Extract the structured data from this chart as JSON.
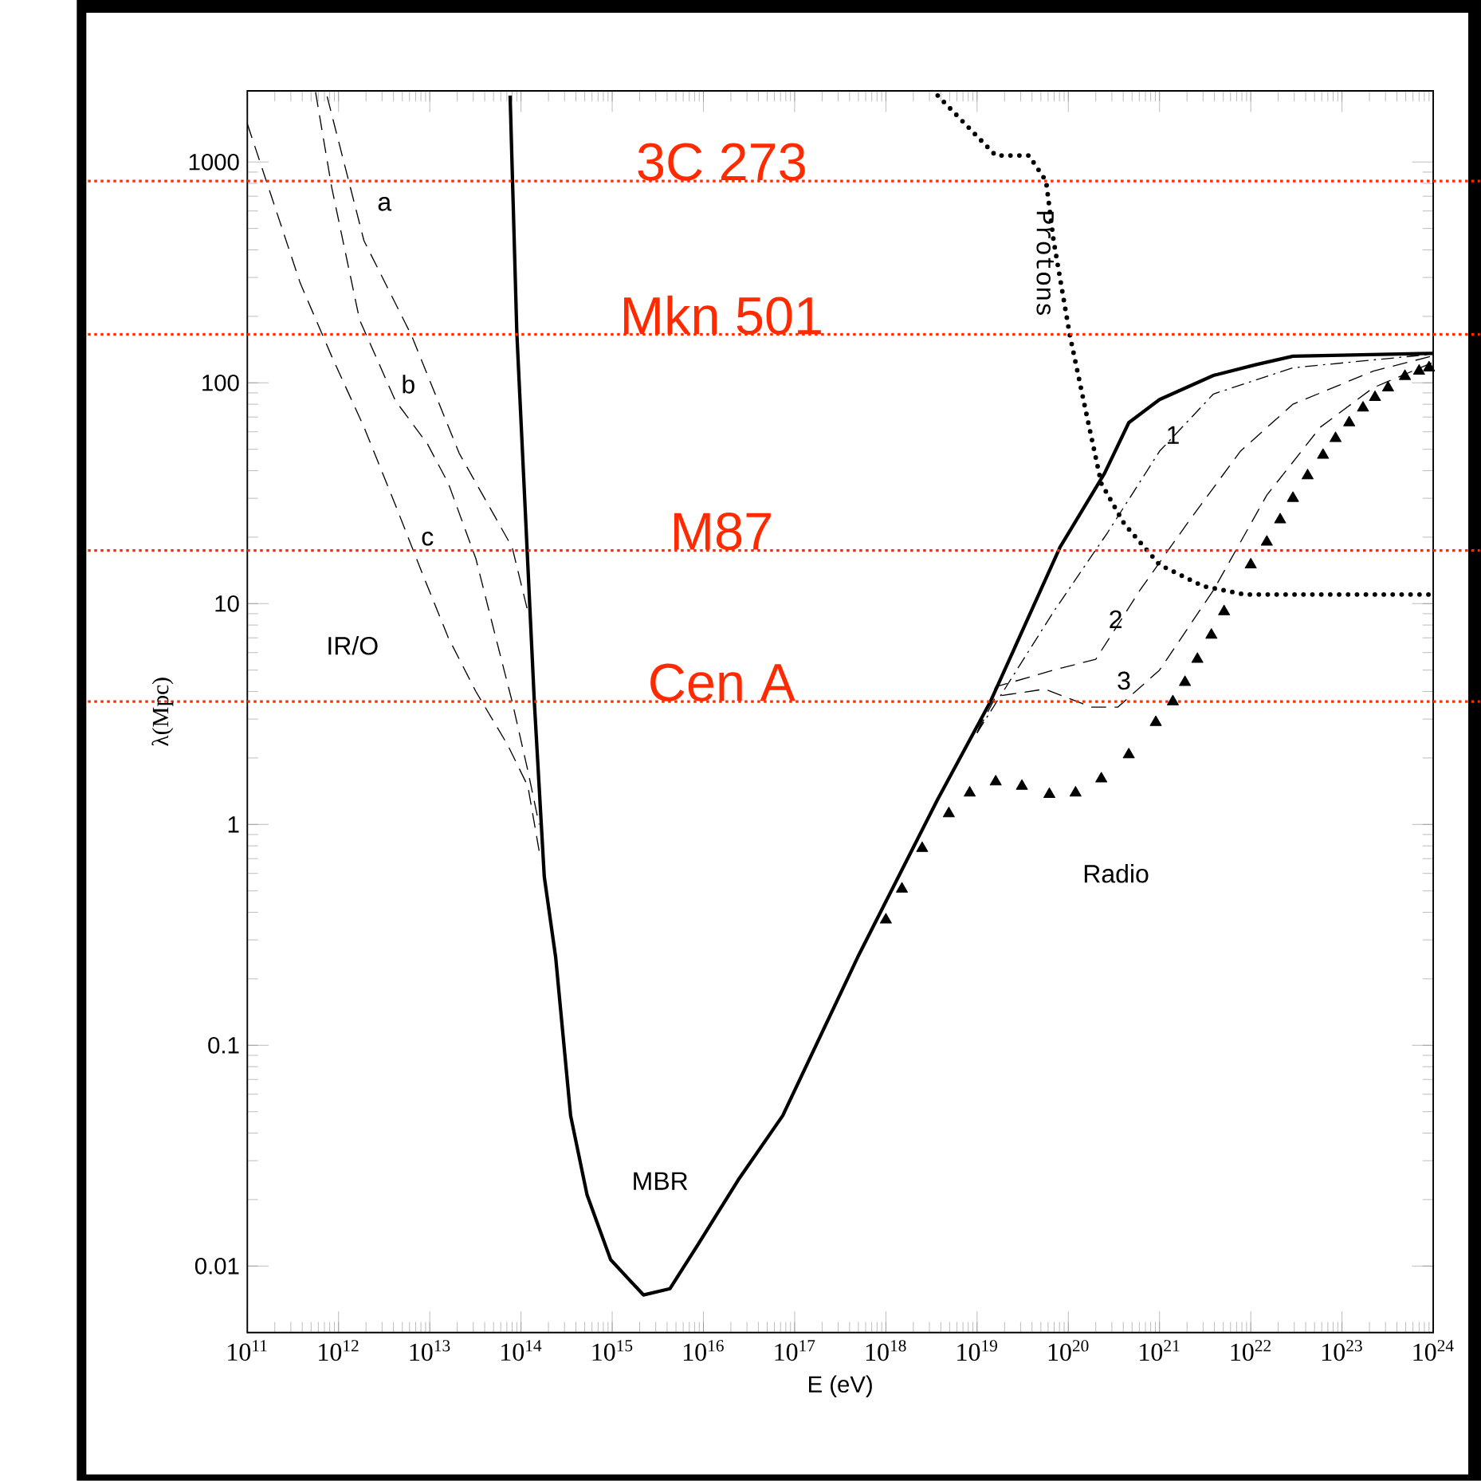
{
  "chart_data": {
    "type": "line",
    "xlabel": "E (eV)",
    "ylabel": "λ(Mpc)",
    "log": "xy",
    "xlim": [
      100000000000.0,
      1e+24
    ],
    "ylim": [
      0.005,
      2100
    ],
    "xticks": [
      {
        "value": 100000000000.0,
        "label": "10$^{11}$"
      },
      {
        "value": 1000000000000.0,
        "label": "10$^{12}$"
      },
      {
        "value": 10000000000000.0,
        "label": "10$^{13}$"
      },
      {
        "value": 100000000000000.0,
        "label": "10$^{14}$"
      },
      {
        "value": 1000000000000000.0,
        "label": "10$^{15}$"
      },
      {
        "value": 1e+16,
        "label": "10$^{16}$"
      },
      {
        "value": 1e+17,
        "label": "10$^{17}$"
      },
      {
        "value": 1e+18,
        "label": "10$^{18}$"
      },
      {
        "value": 1e+19,
        "label": "10$^{19}$"
      },
      {
        "value": 1e+20,
        "label": "10$^{20}$"
      },
      {
        "value": 1e+21,
        "label": "10$^{21}$"
      },
      {
        "value": 1e+22,
        "label": "10$^{22}$"
      },
      {
        "value": 1e+23,
        "label": "10$^{23}$"
      },
      {
        "value": 1e+24,
        "label": "10$^{24}$"
      }
    ],
    "yticks": [
      0.01,
      0.1,
      1,
      10,
      100,
      1000
    ],
    "series": [
      {
        "color": "#000000",
        "line_style": "solid",
        "marker": "none",
        "x": [
          76000000000000.0,
          90000000000000.0,
          140000000000000.0,
          180000000000000.0,
          240000000000000.0,
          350000000000000.0,
          530000000000000.0,
          960000000000000.0,
          1450000000000000.0,
          2200000000000000.0,
          4300000000000000.0,
          8800000000000000.0,
          2.4e+16,
          7.4e+16,
          4.9e+17,
          3.7e+18,
          1.4e+19,
          8.1e+19,
          2.5e+20,
          4.6e+20,
          1e+21,
          3.9e+21,
          1.15e+22,
          2.9e+22,
          1e+24
        ],
        "values": [
          2000,
          169,
          3.6,
          0.58,
          0.25,
          0.048,
          0.021,
          0.0107,
          0.0089,
          0.0074,
          0.0079,
          0.0126,
          0.0245,
          0.048,
          0.25,
          1.3,
          3.6,
          18,
          39,
          66,
          84,
          108,
          121,
          132,
          136
        ]
      },
      {
        "name": "Protons",
        "color": "#000000",
        "line_style": "dotted",
        "marker": "none",
        "x": [
          3.7e+18,
          1.6e+19,
          3.7e+19,
          5.7e+19,
          6.9e+19,
          1.04e+20,
          1.55e+20,
          2.3e+20,
          4.1e+20,
          1e+21,
          3e+21,
          8.6e+21,
          1e+24
        ],
        "values": [
          2000,
          1070,
          1070,
          820,
          440,
          164,
          75,
          35,
          23,
          15,
          12,
          11,
          11
        ]
      },
      {
        "color": "#000000",
        "line_style": "dashdot",
        "marker": "none",
        "x": [
          1e+19,
          6.9e+19,
          2.7e+20,
          1e+21,
          3.9e+21,
          2.9e+22,
          8.5e+23
        ],
        "values": [
          2.6,
          9.2,
          21,
          49,
          89,
          117,
          134
        ]
      },
      {
        "color": "#000000",
        "line_style": "dashed",
        "marker": "none",
        "x": [
          1e+19,
          1.6e+19,
          6.9e+19,
          2e+20,
          6.1e+20,
          2e+21,
          7.7e+21,
          2.9e+22,
          2.2e+23,
          9.6e+23
        ],
        "values": [
          2.6,
          4.2,
          5.0,
          5.6,
          11.5,
          23,
          49,
          80,
          113,
          132
        ]
      },
      {
        "color": "#000000",
        "line_style": "dashed",
        "marker": "none",
        "x": [
          1e+19,
          1.6e+19,
          5.5e+19,
          1.8e+20,
          3.5e+20,
          1e+21,
          3.9e+21,
          1.5e+22,
          5.8e+22,
          2.2e+23,
          9.6e+23
        ],
        "values": [
          2.6,
          3.8,
          4.1,
          3.4,
          3.4,
          5.0,
          11.5,
          31,
          63,
          95,
          123
        ]
      },
      {
        "type": "scatter",
        "color": "#000000",
        "marker": "triangle",
        "x": [
          1e+18,
          1.5e+18,
          2.5e+18,
          4.9e+18,
          8.3e+18,
          1.6e+19,
          3.1e+19,
          6.2e+19,
          1.2e+20,
          2.3e+20,
          4.6e+20,
          9.1e+20,
          1.4e+21,
          1.9e+21,
          2.6e+21,
          3.7e+21,
          5.1e+21,
          1e+22,
          1.5e+22,
          2.1e+22,
          2.9e+22,
          4.2e+22,
          6.2e+22,
          8.5e+22,
          1.2e+23,
          1.7e+23,
          2.3e+23,
          3.2e+23,
          4.9e+23,
          7e+23,
          9e+23
        ],
        "values": [
          0.37,
          0.51,
          0.78,
          1.12,
          1.39,
          1.56,
          1.49,
          1.37,
          1.39,
          1.61,
          2.07,
          2.9,
          3.6,
          4.4,
          5.6,
          7.2,
          9.2,
          15,
          19,
          24,
          30,
          38,
          47,
          56,
          66,
          77,
          86,
          95,
          107,
          113,
          117
        ]
      },
      {
        "color": "#000000",
        "line_style": "dashed",
        "marker": "none",
        "x": [
          750000000000.0,
          1900000000000.0,
          6300000000000.0,
          21000000000000.0,
          80000000000000.0,
          119000000000000.0
        ],
        "values": [
          1980,
          440,
          164,
          48,
          18,
          9.2
        ]
      },
      {
        "color": "#000000",
        "line_style": "dashed",
        "marker": "none",
        "x": [
          560000000000.0,
          840000000000.0,
          1700000000000.0,
          4200000000000.0,
          9400000000000.0,
          16000000000000.0,
          32000000000000.0,
          53000000000000.0,
          80000000000000.0,
          119000000000000.0,
          158000000000000.0
        ],
        "values": [
          2070,
          770,
          193,
          83,
          53,
          35,
          16,
          7.0,
          3.6,
          1.75,
          1.0
        ]
      },
      {
        "color": "#000000",
        "line_style": "dashed",
        "marker": "none",
        "x": [
          100000000000.0,
          170000000000.0,
          380000000000.0,
          840000000000.0,
          1900000000000.0,
          4200000000000.0,
          8400000000000.0,
          16000000000000.0,
          32000000000000.0,
          71000000000000.0,
          119000000000000.0,
          158000000000000.0
        ],
        "values": [
          1490,
          770,
          283,
          132,
          63,
          28,
          13.5,
          7.0,
          4.0,
          2.3,
          1.49,
          0.76
        ]
      }
    ],
    "annotations": [
      "a",
      "b",
      "c",
      "IR/O",
      "MBR",
      "Radio",
      "3",
      {
        "text": "1",
        "x": 1.4e+21,
        "y": 58
      },
      {
        "text": "2",
        "x": 3.3e+20,
        "y": 8.5
      }
    ],
    "ref_lines": [
      {
        "axis": "y",
        "value": 820,
        "label": "3C 273",
        "color": "#ff2a00",
        "line_style": "dotted"
      },
      {
        "axis": "y",
        "value": 166,
        "label": "Mkn 501",
        "color": "#ff2a00",
        "line_style": "dotted"
      },
      {
        "axis": "y",
        "value": 17.4,
        "label": "M87",
        "color": "#ff2a00",
        "line_style": "dotted"
      },
      {
        "axis": "y",
        "value": 3.6,
        "label": "Cen A",
        "color": "#ff2a00",
        "line_style": "dotted"
      }
    ]
  }
}
